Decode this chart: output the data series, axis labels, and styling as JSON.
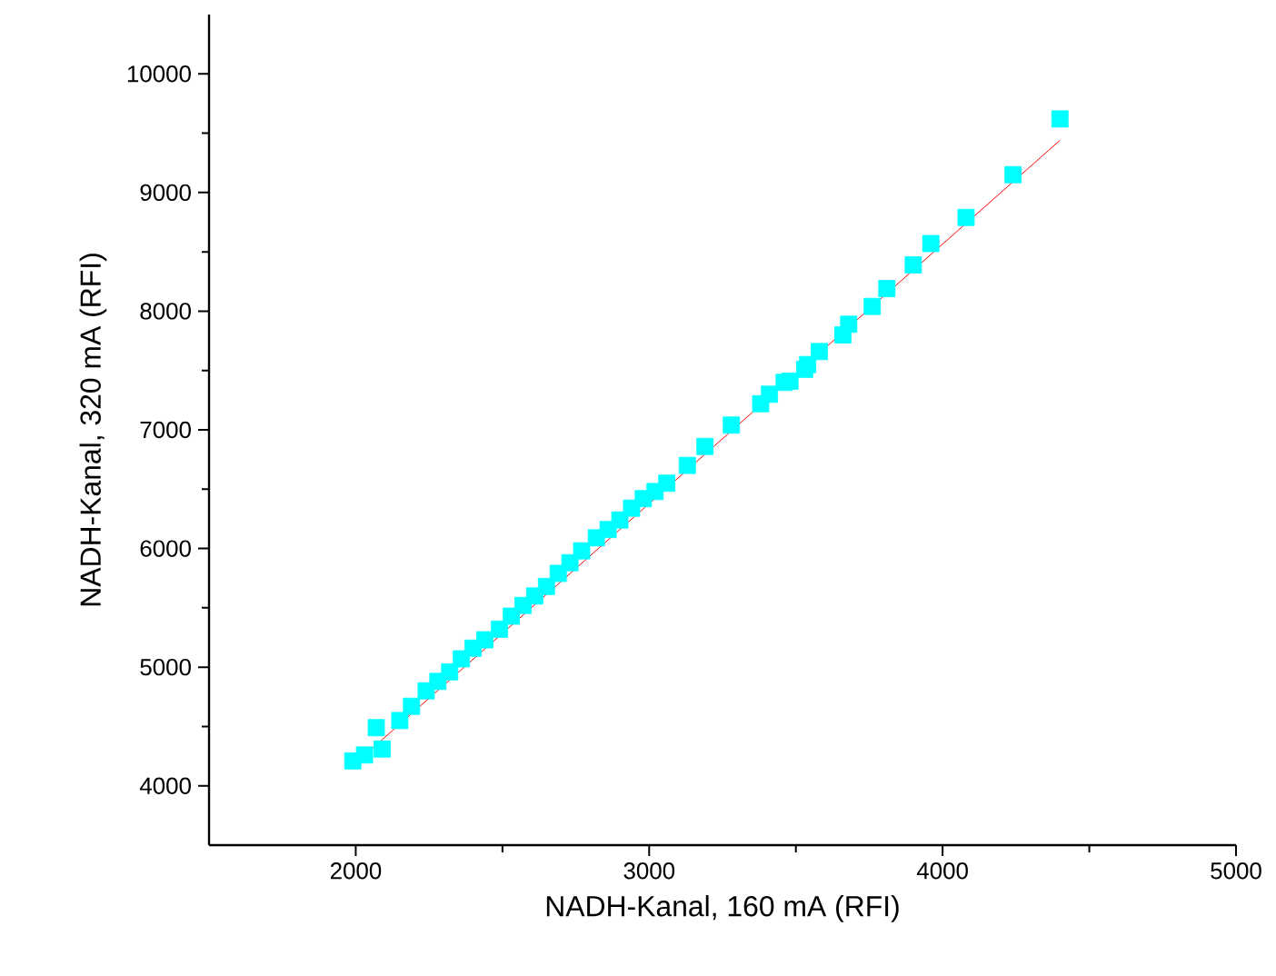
{
  "chart_data": {
    "type": "scatter",
    "xlabel": "NADH-Kanal, 160 mA (RFI)",
    "ylabel": "NADH-Kanal, 320 mA (RFI)",
    "xlim": [
      1500,
      5000
    ],
    "ylim": [
      3500,
      10500
    ],
    "xticks": [
      2000,
      3000,
      4000,
      5000
    ],
    "yticks": [
      4000,
      5000,
      6000,
      7000,
      8000,
      9000,
      10000
    ],
    "grid": false,
    "series": [
      {
        "marker": "square",
        "color": "#00ffff",
        "x": [
          1990,
          2030,
          2070,
          2090,
          2150,
          2190,
          2240,
          2280,
          2320,
          2360,
          2400,
          2440,
          2490,
          2530,
          2570,
          2610,
          2650,
          2690,
          2730,
          2770,
          2820,
          2860,
          2900,
          2940,
          2980,
          3020,
          3060,
          3130,
          3190,
          3280,
          3380,
          3410,
          3460,
          3480,
          3530,
          3540,
          3580,
          3660,
          3680,
          3760,
          3810,
          3900,
          3960,
          4080,
          4240,
          4400
        ],
        "values": [
          4210,
          4260,
          4490,
          4310,
          4550,
          4670,
          4800,
          4880,
          4960,
          5070,
          5160,
          5230,
          5320,
          5430,
          5520,
          5600,
          5680,
          5790,
          5880,
          5980,
          6090,
          6160,
          6240,
          6340,
          6420,
          6480,
          6550,
          6700,
          6860,
          7040,
          7220,
          7300,
          7400,
          7410,
          7510,
          7550,
          7660,
          7800,
          7890,
          8040,
          8190,
          8390,
          8570,
          8790,
          9150,
          9620
        ]
      },
      {
        "type": "line",
        "marker": "none",
        "color": "#ff0000",
        "x": [
          1990,
          4400
        ],
        "values": [
          4170,
          9440
        ]
      }
    ]
  }
}
